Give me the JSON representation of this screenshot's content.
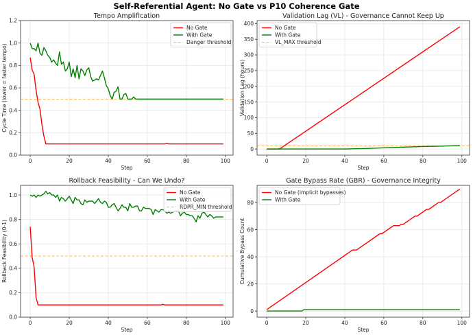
{
  "suptitle": "Self-Referential Agent: No Gate vs P10 Coherence Gate",
  "colors": {
    "no_gate": "#ff0000",
    "with_gate": "#008000",
    "threshold": "#ffb84d"
  },
  "chart_data": [
    {
      "type": "line",
      "title": "Tempo Amplification",
      "xlabel": "Step",
      "ylabel": "Cycle Time (lower = faster tempo)",
      "xlim": [
        -4.95,
        103.95
      ],
      "ylim": [
        0,
        1.2
      ],
      "xticks": [
        0,
        20,
        40,
        60,
        80,
        100
      ],
      "yticks": [
        "0.0",
        "0.2",
        "0.4",
        "0.6",
        "0.8",
        "1.0",
        "1.2"
      ],
      "grid": true,
      "legend": "top-right",
      "series": [
        {
          "name": "No Gate",
          "color": "#ff0000",
          "points": [
            [
              0,
              0.87
            ],
            [
              1,
              0.76
            ],
            [
              2,
              0.72
            ],
            [
              3,
              0.58
            ],
            [
              4,
              0.47
            ],
            [
              5,
              0.41
            ],
            [
              6,
              0.27
            ],
            [
              7,
              0.17
            ],
            [
              8,
              0.1
            ],
            [
              69,
              0.1
            ],
            [
              70,
              0.105
            ],
            [
              71,
              0.1
            ],
            [
              99,
              0.1
            ]
          ]
        },
        {
          "name": "With Gate",
          "color": "#008000",
          "values": [
            1.0,
            0.95,
            0.95,
            0.93,
            1.0,
            0.91,
            0.89,
            0.96,
            0.93,
            0.89,
            0.87,
            0.83,
            0.85,
            0.82,
            0.8,
            0.92,
            0.81,
            0.83,
            0.75,
            0.77,
            0.83,
            0.7,
            0.77,
            0.69,
            0.8,
            0.68,
            0.77,
            0.75,
            0.71,
            0.76,
            0.78,
            0.7,
            0.66,
            0.67,
            0.68,
            0.67,
            0.71,
            0.75,
            0.69,
            0.62,
            0.59,
            0.53,
            0.5,
            0.56,
            0.57,
            0.61,
            0.5,
            0.5,
            0.54,
            0.55,
            0.5,
            0.5,
            0.5,
            0.52,
            0.5
          ],
          "extend_to": 99
        }
      ],
      "threshold": {
        "name": "Danger threshold",
        "value": 0.5
      }
    },
    {
      "type": "line",
      "title": "Validation Lag (VL) - Governance Cannot Keep Up",
      "xlabel": "Step",
      "ylabel": "Validation Lag (hours)",
      "xlim": [
        -4.95,
        103.95
      ],
      "ylim": [
        -19.5,
        409.5
      ],
      "xticks": [
        0,
        20,
        40,
        60,
        80,
        100
      ],
      "yticks": [
        "0",
        "50",
        "100",
        "150",
        "200",
        "250",
        "300",
        "350",
        "400"
      ],
      "grid": true,
      "legend": "top-left",
      "series": [
        {
          "name": "No Gate",
          "color": "#ff0000",
          "points": [
            [
              0,
              0
            ],
            [
              6,
              0
            ],
            [
              7,
              2
            ],
            [
              99,
              390
            ]
          ]
        },
        {
          "name": "With Gate",
          "color": "#008000",
          "points": [
            [
              0,
              0
            ],
            [
              40,
              0
            ],
            [
              50,
              1.5
            ],
            [
              60,
              4
            ],
            [
              70,
              6
            ],
            [
              80,
              8
            ],
            [
              90,
              9.5
            ],
            [
              99,
              11
            ]
          ]
        }
      ],
      "threshold": {
        "name": "VL_MAX threshold",
        "value": 10
      }
    },
    {
      "type": "line",
      "title": "Rollback Feasibility - Can We Undo?",
      "xlabel": "Step",
      "ylabel": "Rollback Feasibility (0-1)",
      "xlim": [
        -4.95,
        103.95
      ],
      "ylim": [
        0,
        1.079
      ],
      "xticks": [
        0,
        20,
        40,
        60,
        80,
        100
      ],
      "yticks": [
        "0.0",
        "0.2",
        "0.4",
        "0.6",
        "0.8",
        "1.0"
      ],
      "grid": true,
      "legend": "top-right",
      "series": [
        {
          "name": "No Gate",
          "color": "#ff0000",
          "points": [
            [
              0,
              0.74
            ],
            [
              1,
              0.49
            ],
            [
              2,
              0.41
            ],
            [
              3,
              0.16
            ],
            [
              4,
              0.1
            ],
            [
              67,
              0.1
            ],
            [
              68,
              0.105
            ],
            [
              69,
              0.1
            ],
            [
              99,
              0.1
            ]
          ]
        },
        {
          "name": "With Gate",
          "color": "#008000",
          "values": [
            1.0,
            0.99,
            1.0,
            0.98,
            1.0,
            0.99,
            1.0,
            1.01,
            1.03,
            1.01,
            1.02,
            1.0,
            1.0,
            0.98,
            1.0,
            0.95,
            0.98,
            0.97,
            0.95,
            0.97,
            0.99,
            0.96,
            0.93,
            0.98,
            0.96,
            0.96,
            0.93,
            0.92,
            0.96,
            0.94,
            0.95,
            0.95,
            0.95,
            0.93,
            0.95,
            0.97,
            0.94,
            0.93,
            0.95,
            0.94,
            0.9,
            0.9,
            0.92,
            0.93,
            0.9,
            0.87,
            0.89,
            0.92,
            0.9,
            0.9,
            0.87,
            0.93,
            0.9,
            0.9,
            0.91,
            0.91,
            0.87,
            0.87,
            0.9,
            0.89,
            0.89,
            0.89,
            0.88,
            0.84,
            0.88,
            0.87,
            0.86,
            0.88,
            0.88,
            0.87,
            0.85,
            0.86,
            0.85,
            0.86,
            0.87,
            0.87,
            0.87,
            0.83,
            0.85,
            0.86,
            0.84,
            0.84,
            0.83,
            0.83,
            0.81,
            0.78,
            0.83,
            0.81,
            0.85,
            0.86,
            0.84,
            0.82,
            0.84,
            0.83,
            0.81,
            0.82,
            0.82,
            0.82,
            0.82,
            0.82
          ]
        }
      ],
      "threshold": {
        "name": "RDPR_MIN threshold",
        "value": 0.5
      }
    },
    {
      "type": "line",
      "title": "Gate Bypass Rate (GBR) - Governance Integrity",
      "xlabel": "Step",
      "ylabel": "Cumulative Bypass Count",
      "xlim": [
        -4.95,
        103.95
      ],
      "ylim": [
        -4.5,
        92.7
      ],
      "xticks": [
        0,
        20,
        40,
        60,
        80,
        100
      ],
      "yticks": [
        "0",
        "20",
        "40",
        "60",
        "80"
      ],
      "grid": true,
      "legend": "top-left",
      "series": [
        {
          "name": "No Gate (implicit bypasses)",
          "color": "#ff0000",
          "points": [
            [
              0,
              1
            ],
            [
              44,
              45
            ],
            [
              46,
              45
            ],
            [
              58,
              57
            ],
            [
              59,
              57
            ],
            [
              65,
              63
            ],
            [
              68,
              63
            ],
            [
              69,
              64
            ],
            [
              70,
              64
            ],
            [
              76,
              70
            ],
            [
              77,
              70
            ],
            [
              82,
              75
            ],
            [
              83,
              75
            ],
            [
              88,
              80
            ],
            [
              89,
              80
            ],
            [
              99,
              90
            ]
          ]
        },
        {
          "name": "With Gate",
          "color": "#008000",
          "points": [
            [
              0,
              0
            ],
            [
              18,
              0
            ],
            [
              19,
              1
            ],
            [
              99,
              1
            ]
          ]
        }
      ]
    }
  ]
}
